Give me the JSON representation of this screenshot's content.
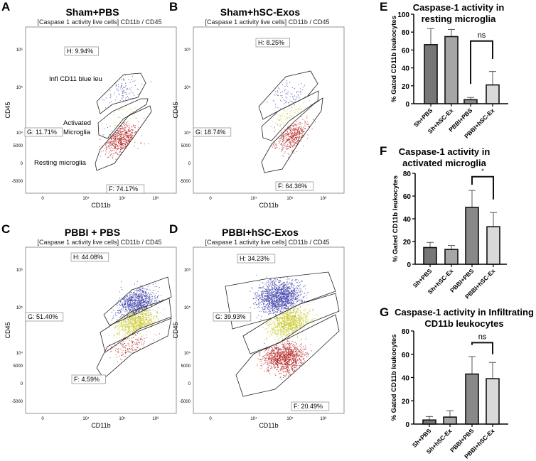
{
  "flow_panels": [
    {
      "letter": "A",
      "title": "Sham+PBS",
      "subtitle": "[Caspase 1 activity live cells] CD11b / CD45",
      "xlabel": "CD11b",
      "ylabel": "CD45",
      "gates": {
        "H": "H: 9.94%",
        "G": "G: 11.71%",
        "F": "F: 74.17%"
      },
      "annotations": [
        "Infl CD11 blue leu",
        "Activated",
        "Microglia",
        "Resting microglia"
      ]
    },
    {
      "letter": "B",
      "title": "Sham+hSC-Exos",
      "subtitle": "[Caspase 1 activity live cells] CD11b / CD45",
      "xlabel": "CD11b",
      "ylabel": "CD45",
      "gates": {
        "H": "H: 8.25%",
        "G": "G: 18.74%",
        "F": "F: 64.36%"
      }
    },
    {
      "letter": "C",
      "title": "PBBI + PBS",
      "subtitle": "[Caspase 1 activity live cells] CD11b / CD45",
      "xlabel": "CD11b",
      "ylabel": "CD45",
      "gates": {
        "H": "H: 44.08%",
        "G": "G: 51.40%",
        "F": "F: 4.59%"
      }
    },
    {
      "letter": "D",
      "title": "PBBI+hSC-Exos",
      "subtitle": "[Caspase 1 activity live cells] CD11b / CD45",
      "xlabel": "CD11b",
      "ylabel": "CD45",
      "gates": {
        "H": "H: 34.23%",
        "G": "G: 39.93%",
        "F": "F: 20.49%"
      }
    }
  ],
  "flow_axes": {
    "xticks": [
      "0",
      "10⁴",
      "10⁵",
      "10⁶"
    ],
    "yticks": [
      "10⁶",
      "10⁵",
      "10⁴",
      "5000",
      "0",
      "-5000"
    ]
  },
  "population_colors": {
    "H": "#3a3aa8",
    "G": "#c9c92a",
    "F": "#b01818"
  },
  "chart_data": [
    {
      "letter": "E",
      "type": "bar",
      "title": "Caspase-1 activity in resting microglia",
      "ylabel": "% Gated CD11b leukocytes",
      "categories": [
        "Sh+PBS",
        "Sh+hSC-Ex",
        "PBBI+PBS",
        "PBBI+hSC-Ex"
      ],
      "values": [
        66,
        75,
        4.5,
        21
      ],
      "errors": [
        18,
        8,
        2.5,
        15
      ],
      "ylim": [
        0,
        100
      ],
      "yticks": [
        "0",
        "20",
        "40",
        "60",
        "80",
        "100"
      ],
      "significance": {
        "between": [
          2,
          3
        ],
        "label": "ns"
      },
      "colors": [
        "#777777",
        "#a6a6a6",
        "#898989",
        "#d9d9d9"
      ]
    },
    {
      "letter": "F",
      "type": "bar",
      "title": "Caspase-1 activity in activated microglia",
      "ylabel": "% Gated CD11b leukocytes",
      "categories": [
        "Sh+PBS",
        "Sh+hSC-Ex",
        "PBBI+PBS",
        "PBBI+hSC-Ex"
      ],
      "values": [
        14.7,
        13,
        50,
        33
      ],
      "errors": [
        4.5,
        3.5,
        15,
        12.5
      ],
      "ylim": [
        0,
        80
      ],
      "yticks": [
        "0",
        "20",
        "40",
        "60",
        "80"
      ],
      "significance": {
        "between": [
          2,
          3
        ],
        "label": "*"
      },
      "colors": [
        "#777777",
        "#a6a6a6",
        "#898989",
        "#d9d9d9"
      ]
    },
    {
      "letter": "G",
      "type": "bar",
      "title": "Caspase-1 activity in Infiltrating CD11b  leukocytes",
      "ylabel": "% Gated CD11b leukocytes",
      "categories": [
        "Sh+PBS",
        "Sh+hSC-Ex",
        "PBBI+PBS",
        "PBBI+hSC-Ex"
      ],
      "values": [
        3.5,
        6,
        43,
        39
      ],
      "errors": [
        3,
        5.5,
        15,
        14
      ],
      "ylim": [
        0,
        80
      ],
      "yticks": [
        "0",
        "20",
        "40",
        "60",
        "80"
      ],
      "significance": {
        "between": [
          2,
          3
        ],
        "label": "ns"
      },
      "colors": [
        "#777777",
        "#a6a6a6",
        "#898989",
        "#d9d9d9"
      ]
    }
  ]
}
